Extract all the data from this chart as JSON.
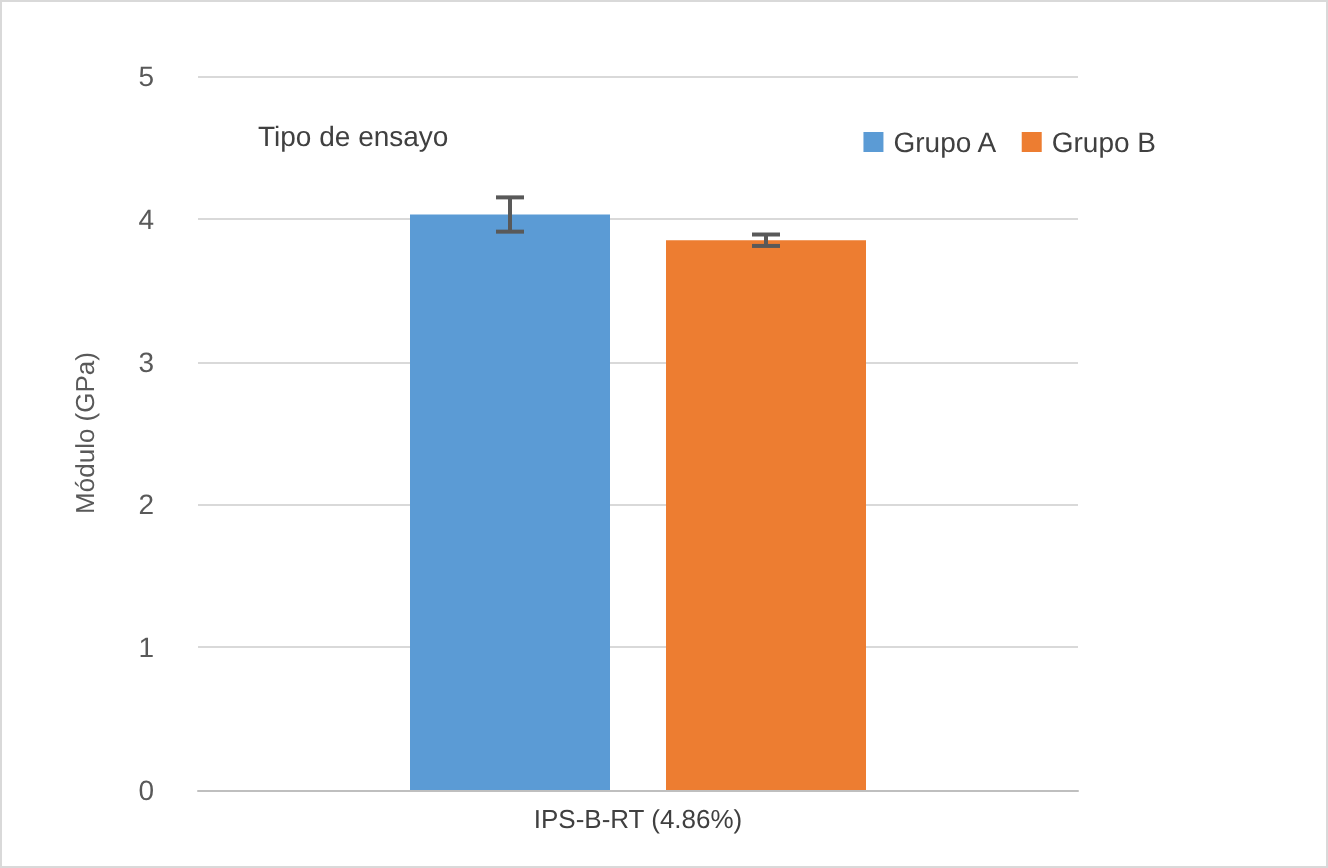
{
  "chart_data": {
    "type": "bar",
    "ylabel": "Módulo (GPa)",
    "legend_title": "Tipo de ensayo",
    "categories": [
      "IPS-B-RT (4.86%)"
    ],
    "series": [
      {
        "name": "Grupo A",
        "color": "#5b9bd5",
        "values": [
          4.03
        ],
        "errors": [
          0.12
        ]
      },
      {
        "name": "Grupo B",
        "color": "#ed7d31",
        "values": [
          3.85
        ],
        "errors": [
          0.04
        ]
      }
    ],
    "ylim": [
      0,
      5
    ],
    "yticks": [
      0,
      1,
      2,
      3,
      4,
      5
    ],
    "grid": "y",
    "legend": "top right"
  }
}
